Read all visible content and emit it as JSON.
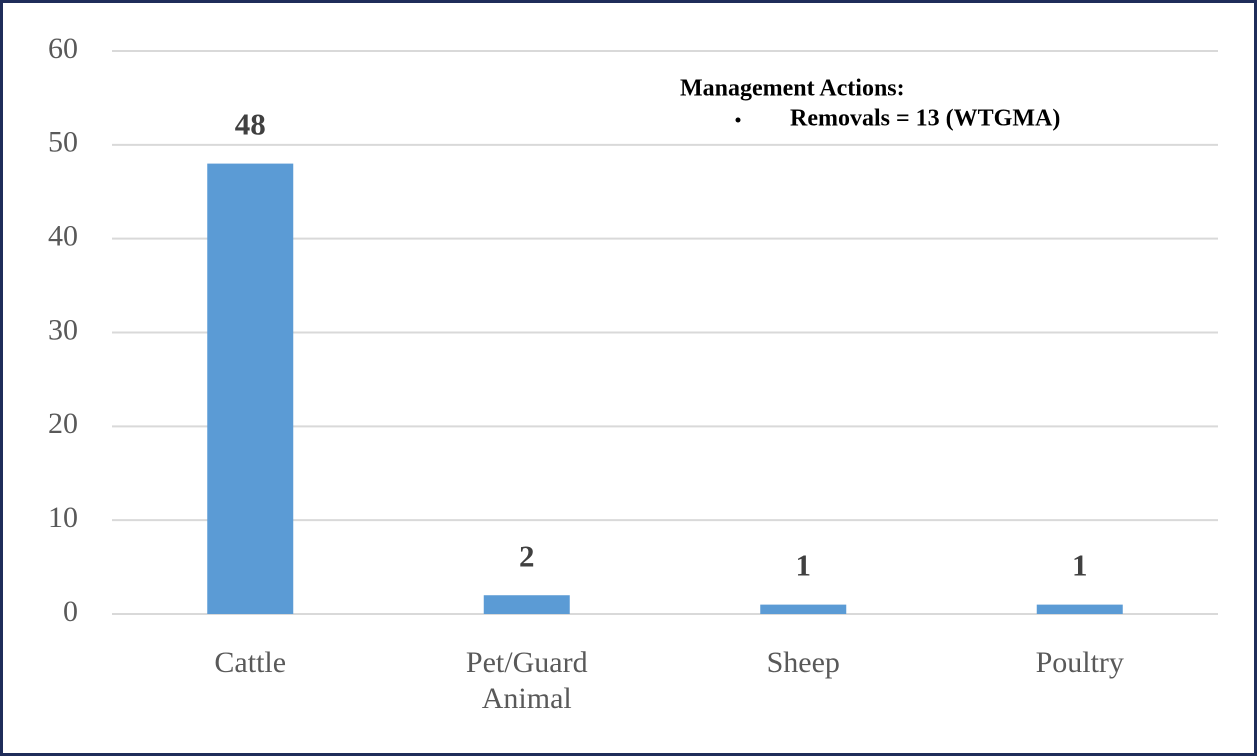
{
  "chart_data": {
    "type": "bar",
    "categories": [
      "Cattle",
      "Pet/Guard Animal",
      "Sheep",
      "Poultry"
    ],
    "values": [
      48,
      2,
      1,
      1
    ],
    "color": "#5b9bd5",
    "ylim": [
      0,
      60
    ],
    "yticks": [
      0,
      10,
      20,
      30,
      40,
      50,
      60
    ],
    "grid": true,
    "annotations": [
      "Management Actions:",
      "Removals = 13 (WTGMA)"
    ]
  }
}
